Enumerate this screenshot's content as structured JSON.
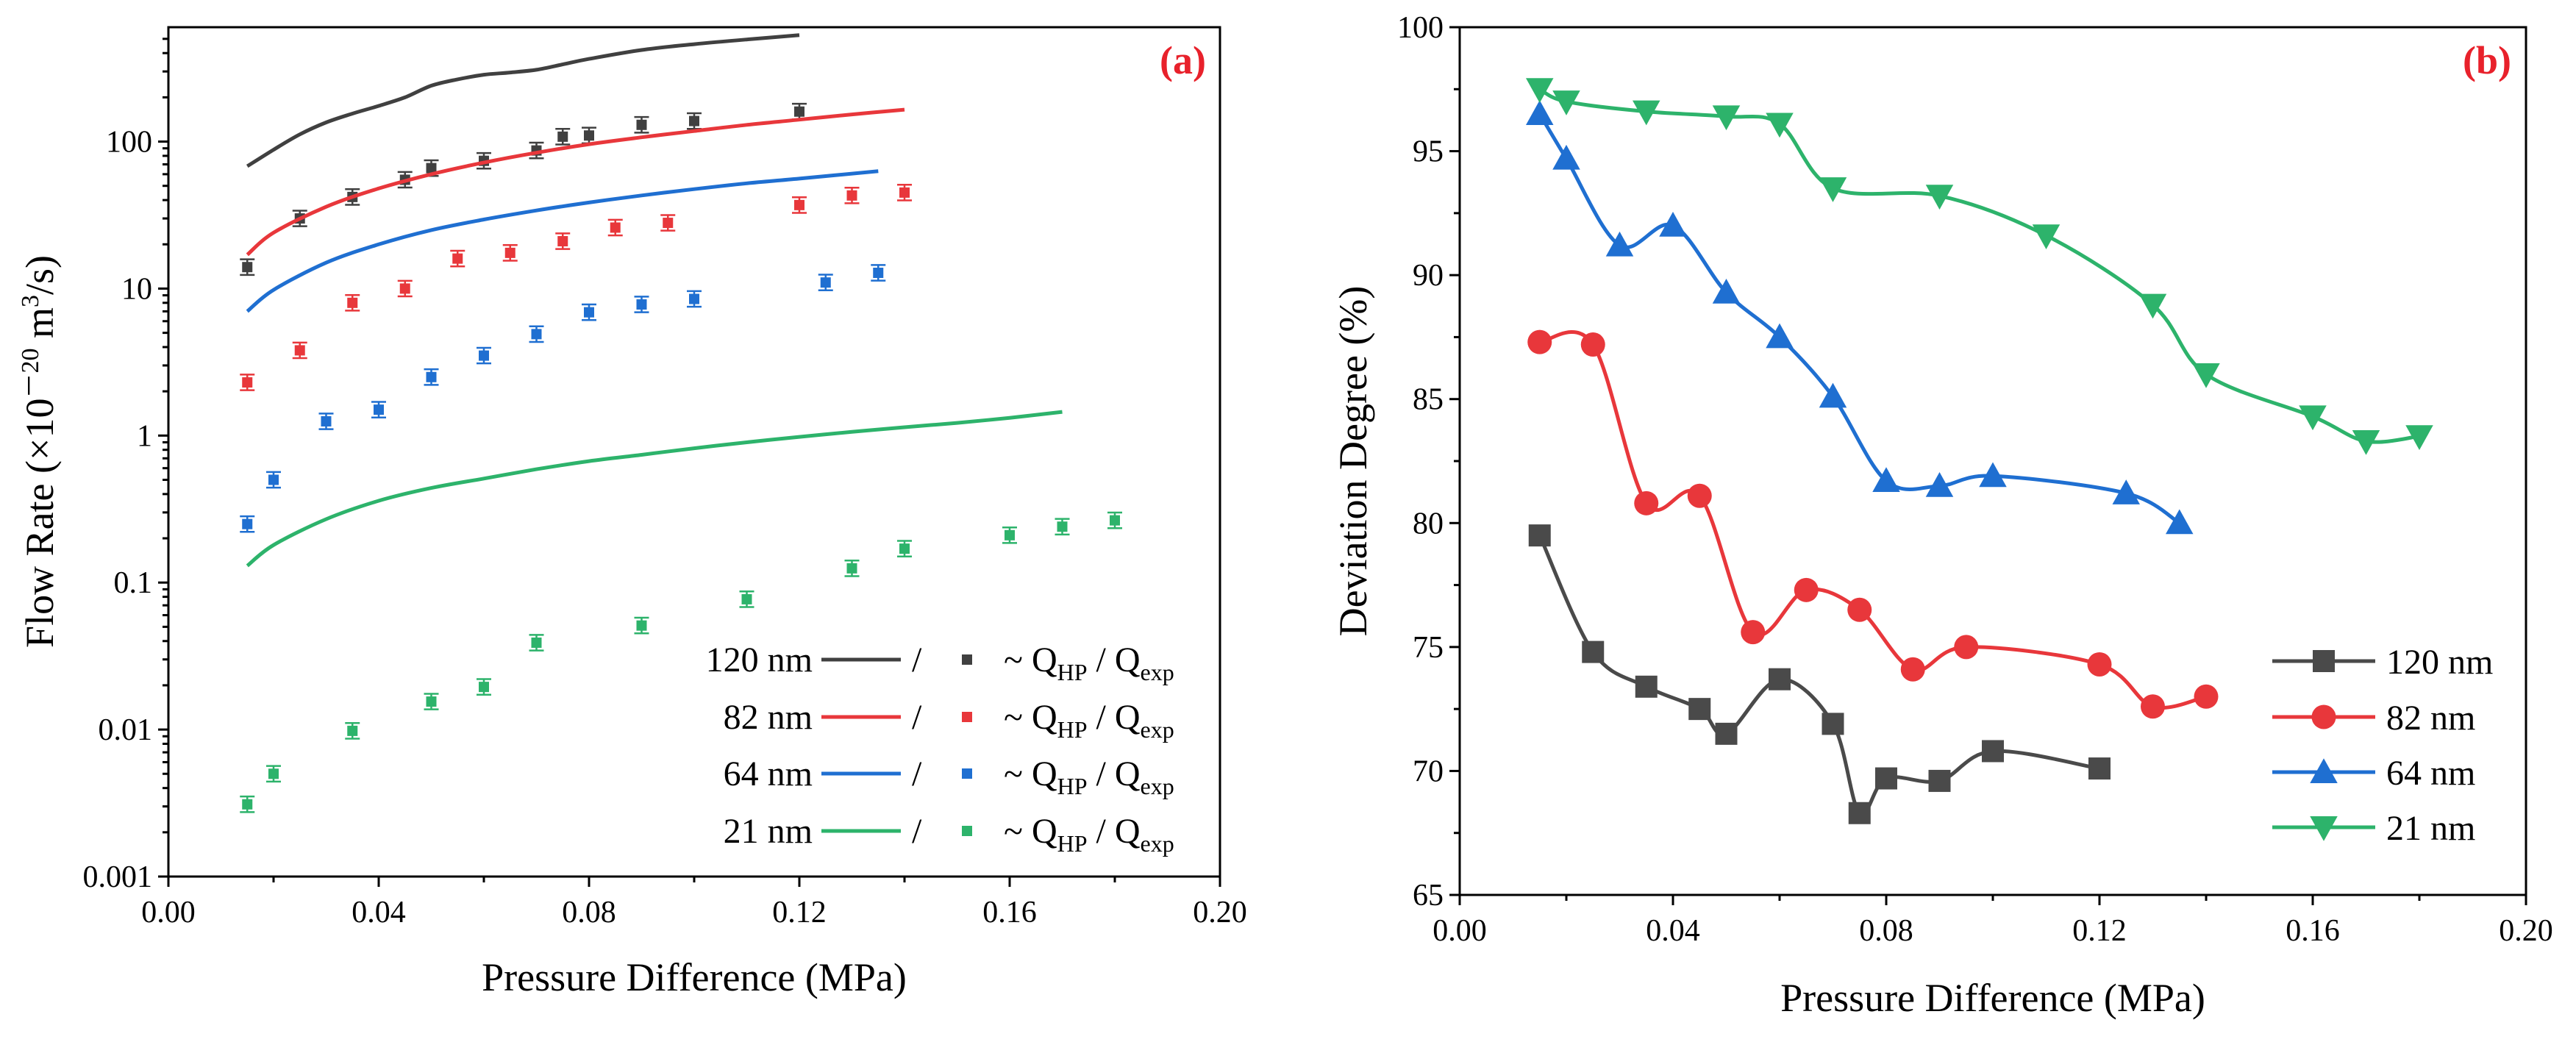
{
  "chart_data": [
    {
      "panel_label": "(a)",
      "panel_label_color": "#e8212b",
      "type": "line",
      "y_scale": "log",
      "xlabel": "Pressure Difference (MPa)",
      "ylabel": {
        "main": "Flow Rate (×10",
        "exp": "－20",
        "unit": " m",
        "unit_exp": "3",
        "tail": "/s)"
      },
      "xlim": [
        0,
        0.2
      ],
      "ylim": [
        0.001,
        600
      ],
      "x_ticks": [
        0,
        0.04,
        0.08,
        0.12,
        0.16,
        0.2
      ],
      "x_tick_labels": [
        "0.00",
        "0.04",
        "0.08",
        "0.12",
        "0.16",
        "0.20"
      ],
      "y_ticks": [
        0.001,
        0.01,
        0.1,
        1,
        10,
        100
      ],
      "y_tick_labels": [
        "0.001",
        "0.01",
        "0.1",
        "1",
        "10",
        "100"
      ],
      "legend_sep": "/",
      "legend_marker_text": {
        "prefix": "~ Q",
        "sub1": "HP",
        "mid": " / Q",
        "sub2": "exp"
      },
      "series": [
        {
          "name": "120 nm",
          "color": "#404040",
          "line": {
            "x": [
              0.015,
              0.02,
              0.025,
              0.03,
              0.035,
              0.04,
              0.045,
              0.05,
              0.055,
              0.06,
              0.065,
              0.07,
              0.075,
              0.08,
              0.09,
              0.1,
              0.11,
              0.12
            ],
            "y": [
              68,
              88,
              112,
              135,
              155,
              175,
              200,
              240,
              265,
              285,
              295,
              308,
              335,
              365,
              420,
              460,
              495,
              530
            ]
          },
          "points": {
            "x": [
              0.015,
              0.025,
              0.035,
              0.045,
              0.05,
              0.06,
              0.07,
              0.075,
              0.08,
              0.09,
              0.1,
              0.12
            ],
            "y": [
              14,
              30,
              42,
              55,
              66,
              74,
              87,
              108,
              110,
              130,
              138,
              160
            ]
          }
        },
        {
          "name": "82 nm",
          "color": "#e8373b",
          "line": {
            "x": [
              0.015,
              0.02,
              0.03,
              0.04,
              0.05,
              0.06,
              0.07,
              0.08,
              0.09,
              0.1,
              0.11,
              0.12,
              0.13,
              0.14
            ],
            "y": [
              17,
              24,
              36,
              48,
              60,
              72,
              84,
              96,
              107,
              118,
              130,
              141,
              153,
              165
            ]
          },
          "points": {
            "x": [
              0.015,
              0.025,
              0.035,
              0.045,
              0.055,
              0.065,
              0.075,
              0.085,
              0.095,
              0.12,
              0.13,
              0.14
            ],
            "y": [
              2.3,
              3.8,
              8,
              10,
              16,
              17.5,
              21,
              26,
              28,
              37,
              43,
              45
            ]
          }
        },
        {
          "name": "64 nm",
          "color": "#1f6fd1",
          "line": {
            "x": [
              0.015,
              0.02,
              0.03,
              0.04,
              0.05,
              0.06,
              0.07,
              0.08,
              0.09,
              0.1,
              0.11,
              0.12,
              0.135
            ],
            "y": [
              7,
              9.8,
              15,
              20,
              25,
              29.5,
              34,
              38.5,
              43,
              47.5,
              52,
              56,
              63
            ]
          },
          "points": {
            "x": [
              0.015,
              0.02,
              0.03,
              0.04,
              0.05,
              0.06,
              0.07,
              0.08,
              0.09,
              0.1,
              0.125,
              0.135
            ],
            "y": [
              0.25,
              0.5,
              1.25,
              1.5,
              2.5,
              3.5,
              4.9,
              6.9,
              7.8,
              8.5,
              11,
              12.8
            ]
          }
        },
        {
          "name": "21 nm",
          "color": "#2db36b",
          "line": {
            "x": [
              0.015,
              0.02,
              0.03,
              0.04,
              0.05,
              0.06,
              0.07,
              0.08,
              0.09,
              0.1,
              0.11,
              0.12,
              0.13,
              0.14,
              0.15,
              0.16,
              0.17
            ],
            "y": [
              0.13,
              0.18,
              0.27,
              0.36,
              0.44,
              0.51,
              0.59,
              0.67,
              0.74,
              0.82,
              0.9,
              0.98,
              1.06,
              1.14,
              1.22,
              1.32,
              1.45
            ]
          },
          "points": {
            "x": [
              0.015,
              0.02,
              0.035,
              0.05,
              0.06,
              0.07,
              0.09,
              0.11,
              0.13,
              0.14,
              0.16,
              0.17,
              0.18
            ],
            "y": [
              0.0031,
              0.005,
              0.0098,
              0.0155,
              0.0195,
              0.039,
              0.051,
              0.077,
              0.125,
              0.17,
              0.21,
              0.24,
              0.265
            ]
          }
        }
      ]
    },
    {
      "panel_label": "(b)",
      "panel_label_color": "#e8212b",
      "type": "line",
      "xlabel": "Pressure Difference (MPa)",
      "ylabel": "Deviation Degree (%)",
      "xlim": [
        0,
        0.2
      ],
      "ylim": [
        65,
        100
      ],
      "x_ticks": [
        0,
        0.04,
        0.08,
        0.12,
        0.16,
        0.2
      ],
      "x_tick_labels": [
        "0.00",
        "0.04",
        "0.08",
        "0.12",
        "0.16",
        "0.20"
      ],
      "y_ticks": [
        65,
        70,
        75,
        80,
        85,
        90,
        95,
        100
      ],
      "y_tick_labels": [
        "65",
        "70",
        "75",
        "80",
        "85",
        "90",
        "95",
        "100"
      ],
      "series": [
        {
          "name": "120 nm",
          "color": "#4a4a4a",
          "marker": "square",
          "x": [
            0.015,
            0.025,
            0.035,
            0.045,
            0.05,
            0.06,
            0.07,
            0.075,
            0.08,
            0.09,
            0.1,
            0.12
          ],
          "y": [
            79.5,
            74.8,
            73.4,
            72.5,
            71.5,
            73.7,
            71.9,
            68.3,
            69.7,
            69.6,
            70.8,
            70.1
          ]
        },
        {
          "name": "82 nm",
          "color": "#e8373b",
          "marker": "circle",
          "x": [
            0.015,
            0.025,
            0.035,
            0.045,
            0.055,
            0.065,
            0.075,
            0.085,
            0.095,
            0.12,
            0.13,
            0.14
          ],
          "y": [
            87.3,
            87.2,
            80.8,
            81.1,
            75.6,
            77.3,
            76.5,
            74.1,
            75.0,
            74.3,
            72.6,
            73.0
          ]
        },
        {
          "name": "64 nm",
          "color": "#1f6fd1",
          "marker": "triangle-up",
          "x": [
            0.015,
            0.02,
            0.03,
            0.04,
            0.05,
            0.06,
            0.07,
            0.08,
            0.09,
            0.1,
            0.125,
            0.135
          ],
          "y": [
            96.5,
            94.7,
            91.2,
            92.0,
            89.3,
            87.5,
            85.1,
            81.7,
            81.5,
            81.9,
            81.2,
            80.0
          ]
        },
        {
          "name": "21 nm",
          "color": "#2db36b",
          "marker": "triangle-down",
          "x": [
            0.015,
            0.02,
            0.035,
            0.05,
            0.06,
            0.07,
            0.09,
            0.11,
            0.13,
            0.14,
            0.16,
            0.17,
            0.18
          ],
          "y": [
            97.5,
            97.0,
            96.6,
            96.4,
            96.1,
            93.5,
            93.2,
            91.6,
            88.8,
            86.0,
            84.3,
            83.3,
            83.5
          ]
        }
      ]
    }
  ]
}
